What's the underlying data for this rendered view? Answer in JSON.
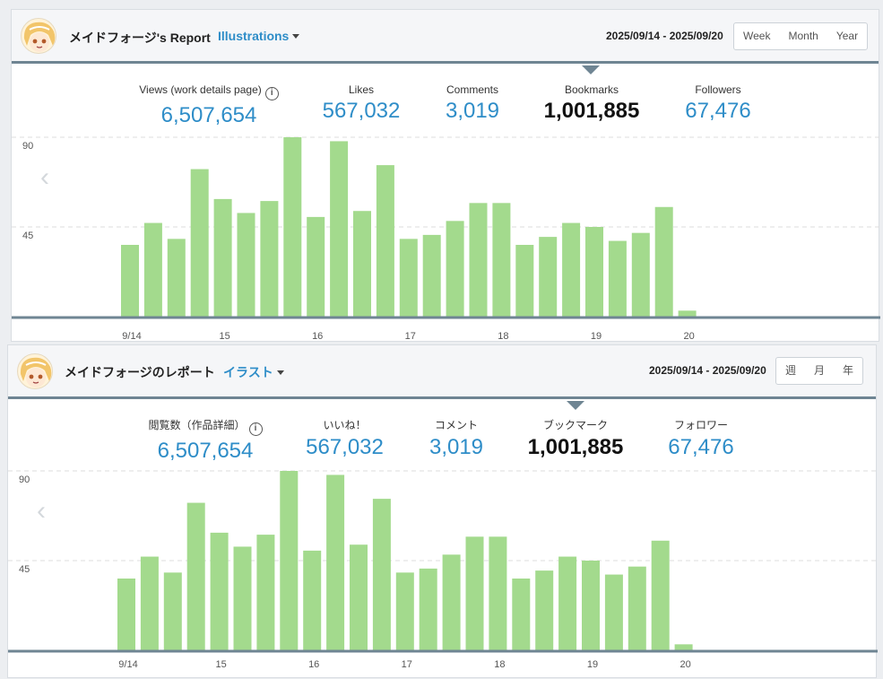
{
  "colors": {
    "accent": "#2e8dc8",
    "bar": "#a3da8d",
    "axis": "#6f8593",
    "grid": "#dcdcdc"
  },
  "en": {
    "author": "メイドフォージ's Report",
    "category": "Illustrations",
    "date_range": "2025/09/14 - 2025/09/20",
    "periods": [
      "Week",
      "Month",
      "Year"
    ],
    "metrics": [
      {
        "label": "Views (work details page)",
        "value": "6,507,654"
      },
      {
        "label": "Likes",
        "value": "567,032"
      },
      {
        "label": "Comments",
        "value": "3,019"
      },
      {
        "label": "Bookmarks",
        "value": "1,001,885"
      },
      {
        "label": "Followers",
        "value": "67,476"
      }
    ],
    "info_icon": "i",
    "prev_arrow": "‹"
  },
  "jp": {
    "author": "メイドフォージのレポート",
    "category": "イラスト",
    "date_range": "2025/09/14 - 2025/09/20",
    "periods": [
      "週",
      "月",
      "年"
    ],
    "metrics": [
      {
        "label": "閲覧数（作品詳細）",
        "value": "6,507,654"
      },
      {
        "label": "いいね！",
        "value": "567,032"
      },
      {
        "label": "コメント",
        "value": "3,019"
      },
      {
        "label": "ブックマーク",
        "value": "1,001,885"
      },
      {
        "label": "フォロワー",
        "value": "67,476"
      }
    ],
    "info_icon": "i",
    "prev_arrow": "‹"
  },
  "chart_data": {
    "type": "bar",
    "series": [
      {
        "values": [
          36,
          47,
          39,
          74,
          59,
          52,
          58,
          90,
          50,
          88,
          53,
          76,
          39,
          41,
          48,
          57,
          57,
          36,
          40,
          47,
          45,
          38,
          42,
          55,
          3
        ]
      }
    ],
    "ylim": [
      0,
      90
    ],
    "yticks": [
      "90",
      "45"
    ],
    "xticks": [
      "9/14",
      "15",
      "16",
      "17",
      "18",
      "19",
      "20"
    ],
    "selected_metric": "Bookmarks"
  }
}
